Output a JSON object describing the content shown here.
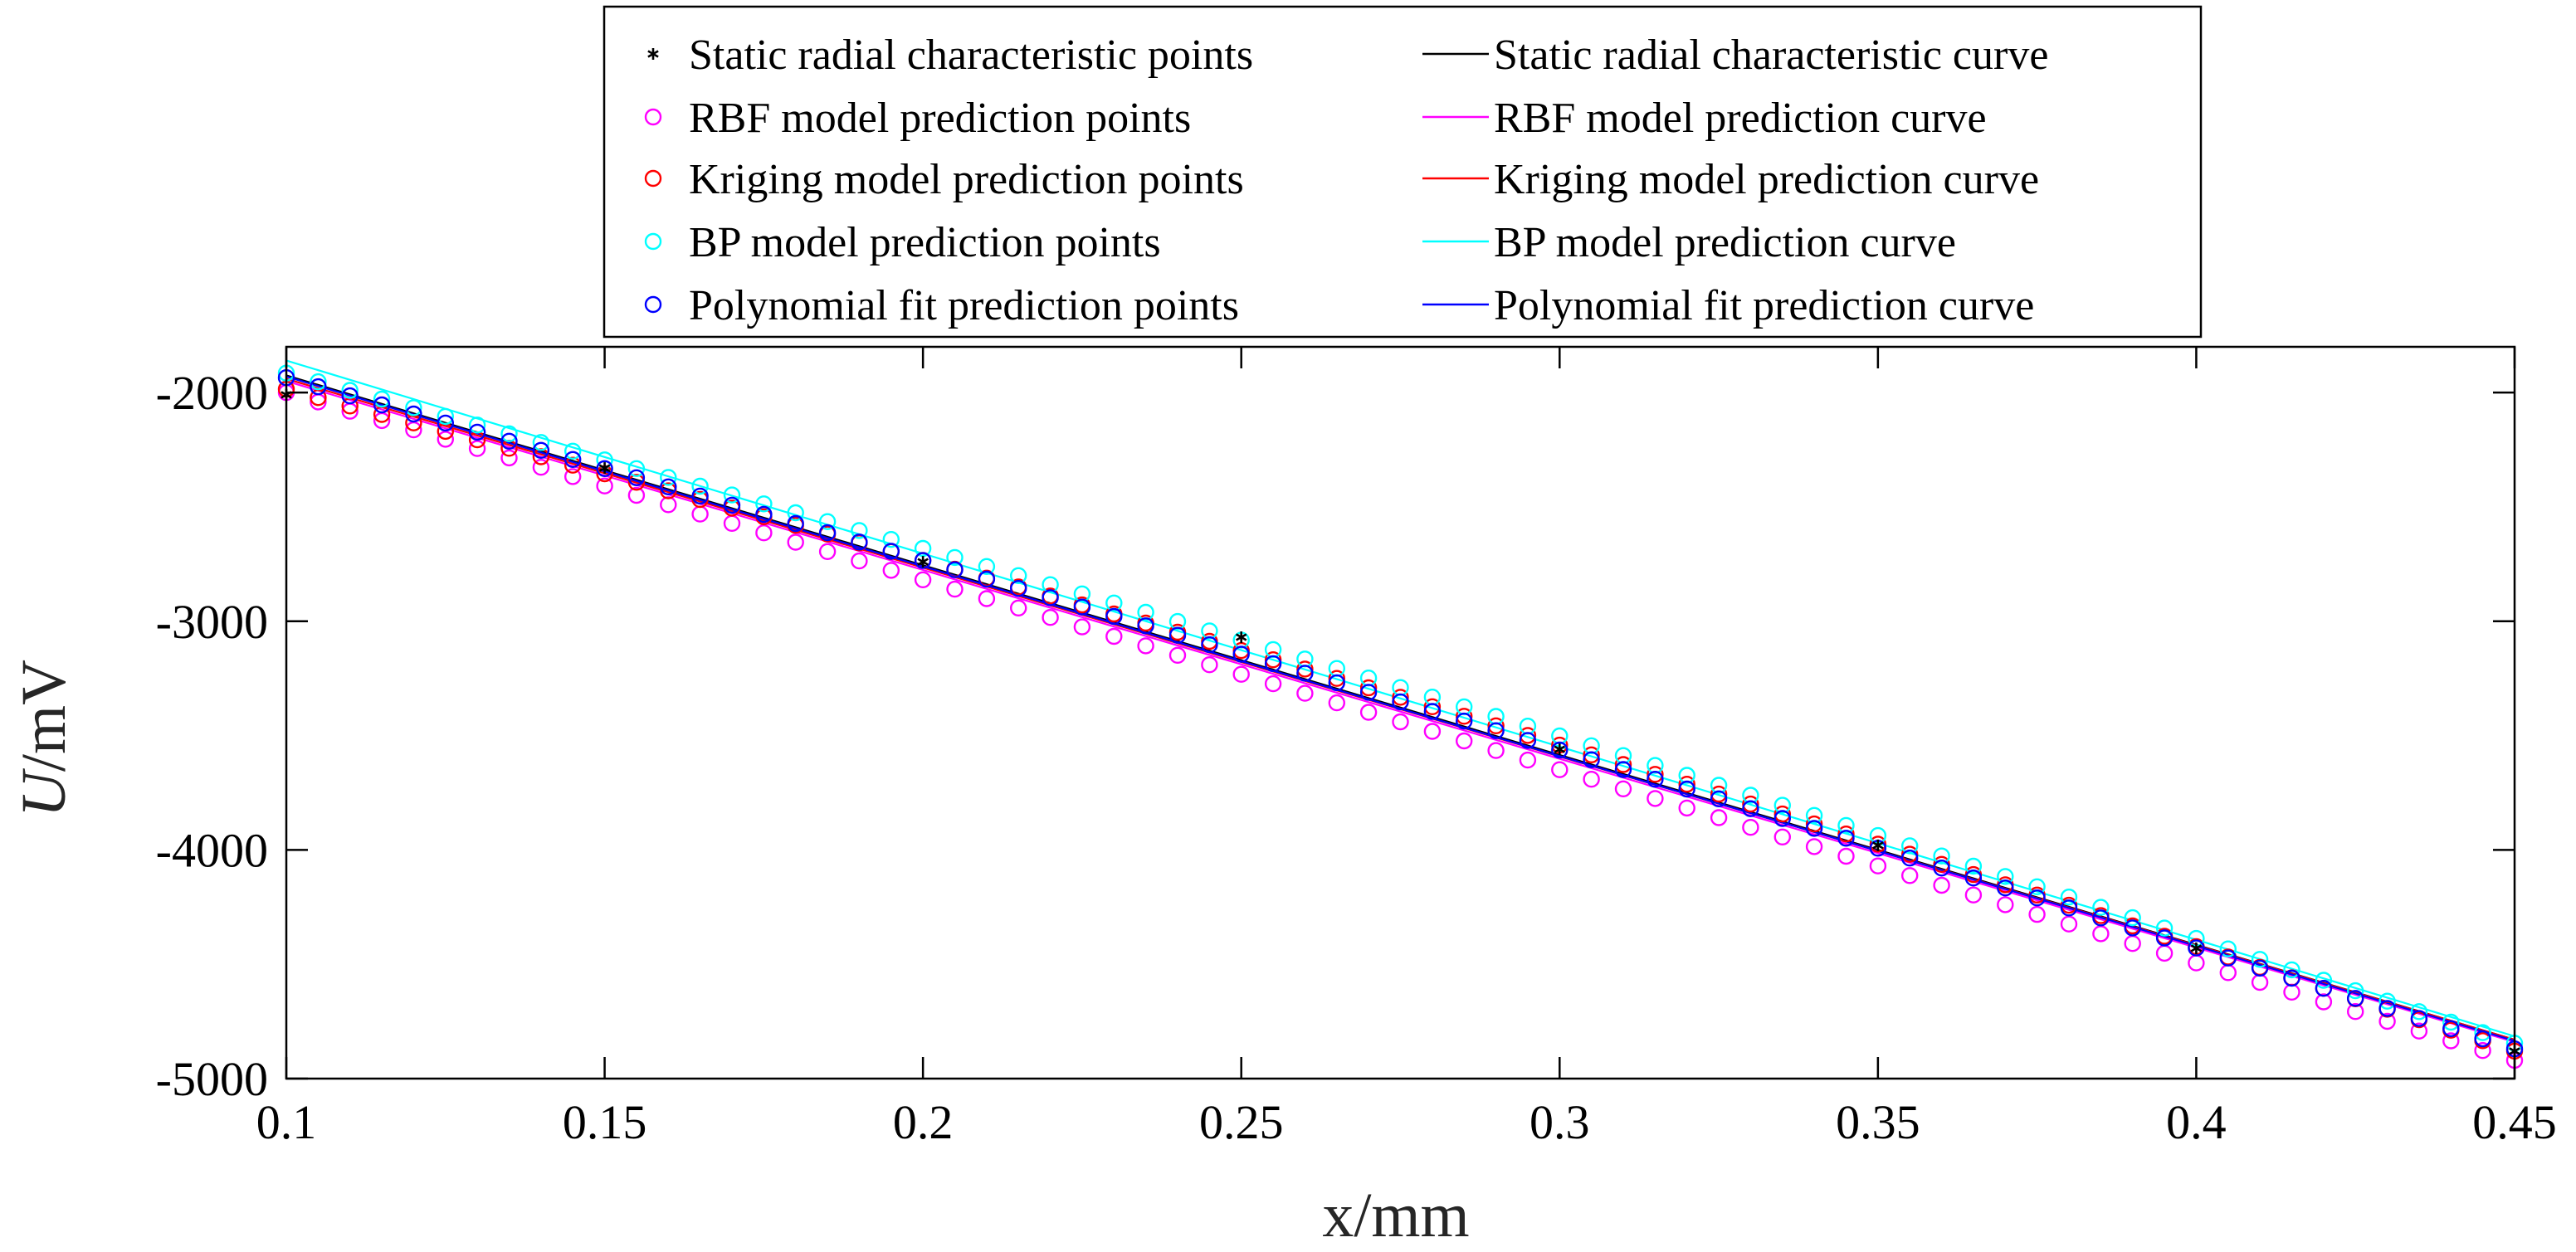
{
  "chart_data": {
    "type": "line",
    "title": "",
    "xlabel": "x/mm",
    "ylabel_italic": "U",
    "ylabel_rest": "/mV",
    "xlim": [
      0.1,
      0.45
    ],
    "ylim": [
      -5000,
      -1800
    ],
    "xticks": [
      0.1,
      0.15,
      0.2,
      0.25,
      0.3,
      0.35,
      0.4,
      0.45
    ],
    "xtick_labels": [
      "0.1",
      "0.15",
      "0.2",
      "0.25",
      "0.3",
      "0.35",
      "0.4",
      "0.45"
    ],
    "yticks": [
      -5000,
      -4000,
      -3000,
      -2000
    ],
    "ytick_labels": [
      "-5000",
      "-4000",
      "-3000",
      "-2000"
    ],
    "grid": false,
    "legend_position": "top-center, above plot, two columns",
    "point_sampling": {
      "x_start": 0.1,
      "x_end": 0.45,
      "step": 0.005
    },
    "static_points": {
      "x": [
        0.1,
        0.15,
        0.2,
        0.25,
        0.3,
        0.35,
        0.4,
        0.45
      ],
      "y": [
        -2010,
        -2330,
        -2740,
        -3070,
        -3560,
        -3980,
        -4430,
        -4880
      ]
    },
    "series": [
      {
        "name": "Static radial characteristic curve",
        "kind": "curve",
        "color": "#000000",
        "x": [
          0.1,
          0.45
        ],
        "y": [
          -1925,
          -4830
        ]
      },
      {
        "name": "RBF model prediction curve",
        "kind": "curve",
        "color": "#ff00ff",
        "x": [
          0.1,
          0.45
        ],
        "y": [
          -1950,
          -4840
        ]
      },
      {
        "name": "Kriging model prediction curve",
        "kind": "curve",
        "color": "#ff0000",
        "x": [
          0.1,
          0.45
        ],
        "y": [
          -1940,
          -4830
        ]
      },
      {
        "name": "BP model prediction curve",
        "kind": "curve",
        "color": "#00ffff",
        "x": [
          0.1,
          0.45
        ],
        "y": [
          -1860,
          -4815
        ]
      },
      {
        "name": "Polynomial fit prediction curve",
        "kind": "curve",
        "color": "#0000ff",
        "x": [
          0.1,
          0.45
        ],
        "y": [
          -1930,
          -4835
        ]
      },
      {
        "name": "RBF model prediction points",
        "kind": "points",
        "color": "#ff00ff",
        "x": [
          0.1,
          0.45
        ],
        "y": [
          -2000,
          -4920
        ],
        "bump": 20
      },
      {
        "name": "Kriging model prediction points",
        "kind": "points",
        "color": "#ff0000",
        "x": [
          0.1,
          0.45
        ],
        "y": [
          -1985,
          -4880
        ],
        "bump": 100
      },
      {
        "name": "BP model prediction points",
        "kind": "points",
        "color": "#00ffff",
        "x": [
          0.1,
          0.45
        ],
        "y": [
          -1915,
          -4845
        ],
        "bump": 90
      },
      {
        "name": "Polynomial fit prediction points",
        "kind": "points",
        "color": "#0000ff",
        "x": [
          0.1,
          0.45
        ],
        "y": [
          -1935,
          -4870
        ],
        "bump": 50
      }
    ],
    "legend": {
      "left_column": [
        {
          "label": "Static radial characteristic points",
          "marker": "star",
          "color": "#000000"
        },
        {
          "label": "RBF model prediction points",
          "marker": "circle",
          "color": "#ff00ff"
        },
        {
          "label": "Kriging model prediction points",
          "marker": "circle",
          "color": "#ff0000"
        },
        {
          "label": "BP model prediction points",
          "marker": "circle",
          "color": "#00ffff"
        },
        {
          "label": "Polynomial fit prediction points",
          "marker": "circle",
          "color": "#0000ff"
        }
      ],
      "right_column": [
        {
          "label": "Static radial characteristic curve",
          "marker": "line",
          "color": "#000000"
        },
        {
          "label": "RBF model prediction curve",
          "marker": "line",
          "color": "#ff00ff"
        },
        {
          "label": "Kriging model prediction curve",
          "marker": "line",
          "color": "#ff0000"
        },
        {
          "label": "BP model prediction curve",
          "marker": "line",
          "color": "#00ffff"
        },
        {
          "label": "Polynomial fit prediction curve",
          "marker": "line",
          "color": "#0000ff"
        }
      ]
    }
  }
}
